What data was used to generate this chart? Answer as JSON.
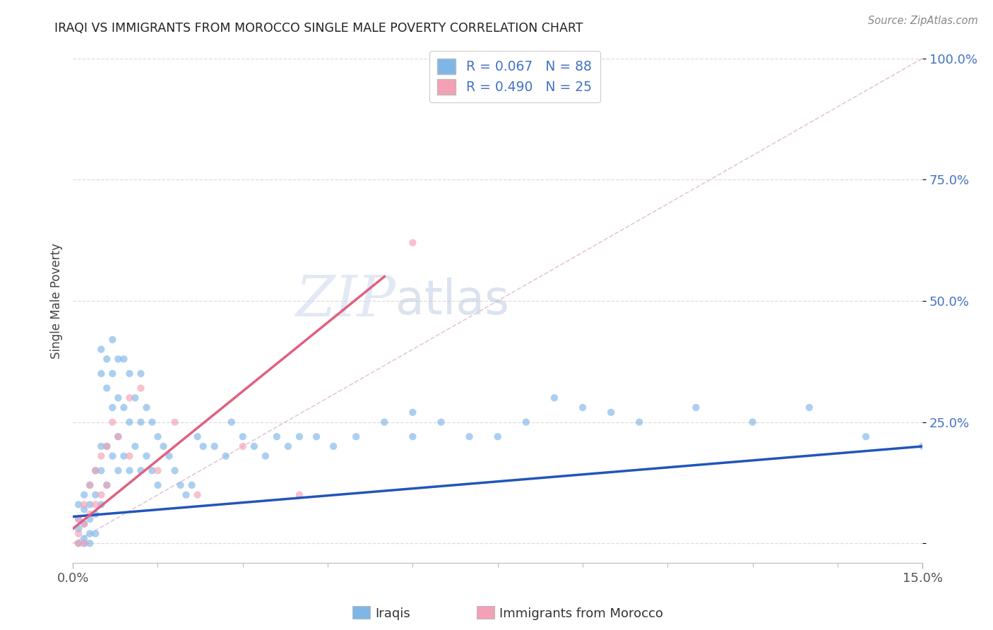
{
  "title": "IRAQI VS IMMIGRANTS FROM MOROCCO SINGLE MALE POVERTY CORRELATION CHART",
  "source": "Source: ZipAtlas.com",
  "ylabel": "Single Male Poverty",
  "legend_label1": "Iraqis",
  "legend_label2": "Immigrants from Morocco",
  "r1": 0.067,
  "n1": 88,
  "r2": 0.49,
  "n2": 25,
  "color_iraqis": "#7EB6E8",
  "color_morocco": "#F4A0B5",
  "color_iraqis_line": "#2255BB",
  "color_morocco_line": "#E06080",
  "color_text_blue": "#4472C4",
  "scatter_alpha": 0.65,
  "scatter_size": 55,
  "xlim": [
    0.0,
    0.15
  ],
  "ylim": [
    -0.04,
    1.04
  ],
  "ytick_vals": [
    0.0,
    0.25,
    0.5,
    0.75,
    1.0
  ],
  "ytick_labels": [
    "",
    "25.0%",
    "50.0%",
    "75.0%",
    "100.0%"
  ],
  "xtick_vals": [
    0.0,
    0.15
  ],
  "xtick_labels": [
    "0.0%",
    "15.0%"
  ],
  "iraqis_x": [
    0.001,
    0.001,
    0.001,
    0.001,
    0.002,
    0.002,
    0.002,
    0.002,
    0.002,
    0.003,
    0.003,
    0.003,
    0.003,
    0.003,
    0.004,
    0.004,
    0.004,
    0.004,
    0.005,
    0.005,
    0.005,
    0.005,
    0.005,
    0.006,
    0.006,
    0.006,
    0.006,
    0.007,
    0.007,
    0.007,
    0.007,
    0.008,
    0.008,
    0.008,
    0.008,
    0.009,
    0.009,
    0.009,
    0.01,
    0.01,
    0.01,
    0.011,
    0.011,
    0.012,
    0.012,
    0.012,
    0.013,
    0.013,
    0.014,
    0.014,
    0.015,
    0.015,
    0.016,
    0.017,
    0.018,
    0.019,
    0.02,
    0.021,
    0.022,
    0.023,
    0.025,
    0.027,
    0.028,
    0.03,
    0.032,
    0.034,
    0.036,
    0.038,
    0.04,
    0.043,
    0.046,
    0.05,
    0.055,
    0.06,
    0.065,
    0.07,
    0.08,
    0.09,
    0.1,
    0.11,
    0.12,
    0.13,
    0.14,
    0.15,
    0.06,
    0.075,
    0.085,
    0.095
  ],
  "iraqis_y": [
    0.08,
    0.05,
    0.03,
    0.0,
    0.1,
    0.07,
    0.04,
    0.01,
    0.0,
    0.12,
    0.08,
    0.05,
    0.02,
    0.0,
    0.15,
    0.1,
    0.06,
    0.02,
    0.4,
    0.35,
    0.2,
    0.15,
    0.08,
    0.38,
    0.32,
    0.2,
    0.12,
    0.42,
    0.35,
    0.28,
    0.18,
    0.38,
    0.3,
    0.22,
    0.15,
    0.38,
    0.28,
    0.18,
    0.35,
    0.25,
    0.15,
    0.3,
    0.2,
    0.35,
    0.25,
    0.15,
    0.28,
    0.18,
    0.25,
    0.15,
    0.22,
    0.12,
    0.2,
    0.18,
    0.15,
    0.12,
    0.1,
    0.12,
    0.22,
    0.2,
    0.2,
    0.18,
    0.25,
    0.22,
    0.2,
    0.18,
    0.22,
    0.2,
    0.22,
    0.22,
    0.2,
    0.22,
    0.25,
    0.22,
    0.25,
    0.22,
    0.25,
    0.28,
    0.25,
    0.28,
    0.25,
    0.28,
    0.22,
    0.2,
    0.27,
    0.22,
    0.3,
    0.27
  ],
  "morocco_x": [
    0.001,
    0.001,
    0.001,
    0.002,
    0.002,
    0.002,
    0.003,
    0.003,
    0.004,
    0.004,
    0.005,
    0.005,
    0.006,
    0.006,
    0.007,
    0.008,
    0.01,
    0.01,
    0.012,
    0.015,
    0.018,
    0.022,
    0.03,
    0.06,
    0.04
  ],
  "morocco_y": [
    0.05,
    0.02,
    0.0,
    0.08,
    0.04,
    0.0,
    0.12,
    0.06,
    0.15,
    0.08,
    0.18,
    0.1,
    0.2,
    0.12,
    0.25,
    0.22,
    0.3,
    0.18,
    0.32,
    0.15,
    0.25,
    0.1,
    0.2,
    0.62,
    0.1
  ],
  "diag_color": "#D0A0B0",
  "watermark_zip": "ZIP",
  "watermark_atlas": "atlas"
}
